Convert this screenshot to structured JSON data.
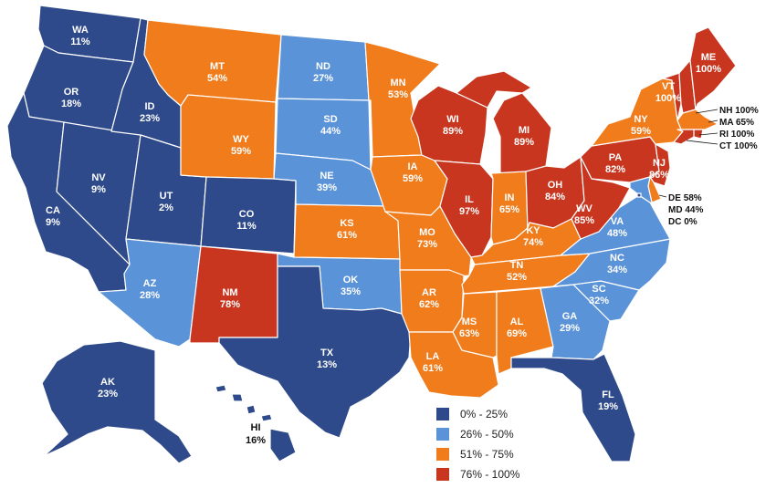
{
  "colors": {
    "c1": "#2e4a8a",
    "c2": "#5b93d8",
    "c3": "#f07c1c",
    "c4": "#c8361f"
  },
  "legend": [
    {
      "label": "0% - 25%",
      "category": "c1"
    },
    {
      "label": "26% - 50%",
      "category": "c2"
    },
    {
      "label": "51% - 75%",
      "category": "c3"
    },
    {
      "label": "76% - 100%",
      "category": "c4"
    }
  ],
  "states": {
    "WA": {
      "abbr": "WA",
      "value": "11%",
      "category": "c1"
    },
    "OR": {
      "abbr": "OR",
      "value": "18%",
      "category": "c1"
    },
    "CA": {
      "abbr": "CA",
      "value": "9%",
      "category": "c1"
    },
    "NV": {
      "abbr": "NV",
      "value": "9%",
      "category": "c1"
    },
    "ID": {
      "abbr": "ID",
      "value": "23%",
      "category": "c1"
    },
    "UT": {
      "abbr": "UT",
      "value": "2%",
      "category": "c1"
    },
    "AZ": {
      "abbr": "AZ",
      "value": "28%",
      "category": "c2"
    },
    "MT": {
      "abbr": "MT",
      "value": "54%",
      "category": "c3"
    },
    "WY": {
      "abbr": "WY",
      "value": "59%",
      "category": "c3"
    },
    "CO": {
      "abbr": "CO",
      "value": "11%",
      "category": "c1"
    },
    "NM": {
      "abbr": "NM",
      "value": "78%",
      "category": "c4"
    },
    "ND": {
      "abbr": "ND",
      "value": "27%",
      "category": "c2"
    },
    "SD": {
      "abbr": "SD",
      "value": "44%",
      "category": "c2"
    },
    "NE": {
      "abbr": "NE",
      "value": "39%",
      "category": "c2"
    },
    "KS": {
      "abbr": "KS",
      "value": "61%",
      "category": "c3"
    },
    "OK": {
      "abbr": "OK",
      "value": "35%",
      "category": "c2"
    },
    "TX": {
      "abbr": "TX",
      "value": "13%",
      "category": "c1"
    },
    "MN": {
      "abbr": "MN",
      "value": "53%",
      "category": "c3"
    },
    "IA": {
      "abbr": "IA",
      "value": "59%",
      "category": "c3"
    },
    "MO": {
      "abbr": "MO",
      "value": "73%",
      "category": "c3"
    },
    "AR": {
      "abbr": "AR",
      "value": "62%",
      "category": "c3"
    },
    "LA": {
      "abbr": "LA",
      "value": "61%",
      "category": "c3"
    },
    "WI": {
      "abbr": "WI",
      "value": "89%",
      "category": "c4"
    },
    "IL": {
      "abbr": "IL",
      "value": "97%",
      "category": "c4"
    },
    "MI": {
      "abbr": "MI",
      "value": "89%",
      "category": "c4"
    },
    "IN": {
      "abbr": "IN",
      "value": "65%",
      "category": "c3"
    },
    "OH": {
      "abbr": "OH",
      "value": "84%",
      "category": "c4"
    },
    "KY": {
      "abbr": "KY",
      "value": "74%",
      "category": "c3"
    },
    "TN": {
      "abbr": "TN",
      "value": "52%",
      "category": "c3"
    },
    "MS": {
      "abbr": "MS",
      "value": "63%",
      "category": "c3"
    },
    "AL": {
      "abbr": "AL",
      "value": "69%",
      "category": "c3"
    },
    "GA": {
      "abbr": "GA",
      "value": "29%",
      "category": "c2"
    },
    "FL": {
      "abbr": "FL",
      "value": "19%",
      "category": "c1"
    },
    "SC": {
      "abbr": "SC",
      "value": "32%",
      "category": "c2"
    },
    "NC": {
      "abbr": "NC",
      "value": "34%",
      "category": "c2"
    },
    "VA": {
      "abbr": "VA",
      "value": "48%",
      "category": "c2"
    },
    "WV": {
      "abbr": "WV",
      "value": "85%",
      "category": "c4"
    },
    "PA": {
      "abbr": "PA",
      "value": "82%",
      "category": "c4"
    },
    "NY": {
      "abbr": "NY",
      "value": "59%",
      "category": "c3"
    },
    "NJ": {
      "abbr": "NJ",
      "value": "86%",
      "category": "c4"
    },
    "VT": {
      "abbr": "VT",
      "value": "100%",
      "category": "c4"
    },
    "ME": {
      "abbr": "ME",
      "value": "100%",
      "category": "c4"
    },
    "NH": {
      "abbr": "NH",
      "value": "100%",
      "category": "c4"
    },
    "MA": {
      "abbr": "MA",
      "value": "65%",
      "category": "c3"
    },
    "RI": {
      "abbr": "RI",
      "value": "100%",
      "category": "c4"
    },
    "CT": {
      "abbr": "CT",
      "value": "100%",
      "category": "c4"
    },
    "DE": {
      "abbr": "DE",
      "value": "58%",
      "category": "c3"
    },
    "MD": {
      "abbr": "MD",
      "value": "44%",
      "category": "c2"
    },
    "DC": {
      "abbr": "DC",
      "value": "0%",
      "category": "c1"
    },
    "AK": {
      "abbr": "AK",
      "value": "23%",
      "category": "c1"
    },
    "HI": {
      "abbr": "HI",
      "value": "16%",
      "category": "c1"
    }
  }
}
